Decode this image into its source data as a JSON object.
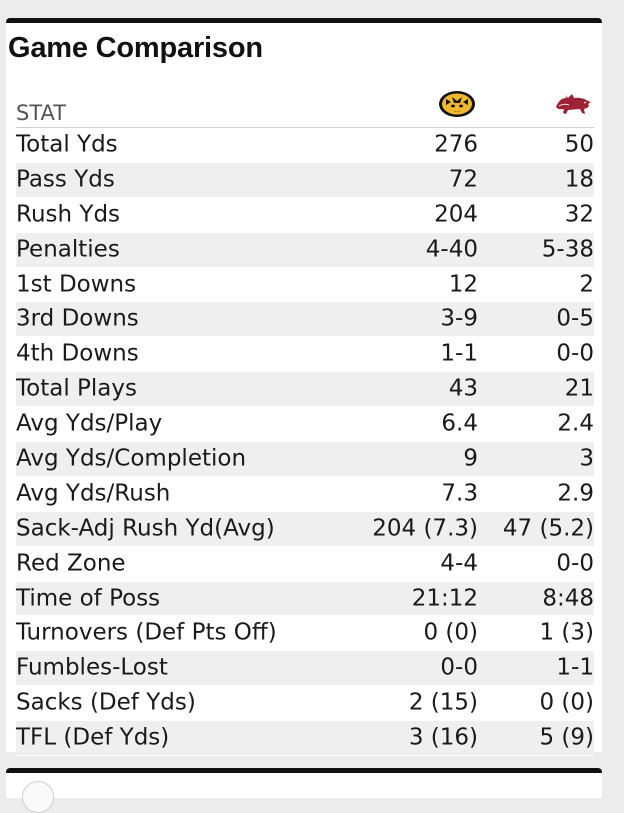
{
  "panel": {
    "title": "Game Comparison",
    "stat_header": "STAT",
    "home_logo_icon": "tiger-logo-icon",
    "away_logo_icon": "razorback-logo-icon",
    "home_color": "#F1B82D",
    "away_color": "#9D2235"
  },
  "rows": [
    {
      "stat": "Total Yds",
      "home": "276",
      "away": "50"
    },
    {
      "stat": "Pass Yds",
      "home": "72",
      "away": "18"
    },
    {
      "stat": "Rush Yds",
      "home": "204",
      "away": "32"
    },
    {
      "stat": "Penalties",
      "home": "4-40",
      "away": "5-38"
    },
    {
      "stat": "1st Downs",
      "home": "12",
      "away": "2"
    },
    {
      "stat": "3rd Downs",
      "home": "3-9",
      "away": "0-5"
    },
    {
      "stat": "4th Downs",
      "home": "1-1",
      "away": "0-0"
    },
    {
      "stat": "Total Plays",
      "home": "43",
      "away": "21"
    },
    {
      "stat": "Avg Yds/Play",
      "home": "6.4",
      "away": "2.4"
    },
    {
      "stat": "Avg Yds/Completion",
      "home": "9",
      "away": "3"
    },
    {
      "stat": "Avg Yds/Rush",
      "home": "7.3",
      "away": "2.9"
    },
    {
      "stat": "Sack-Adj Rush Yd(Avg)",
      "home": "204 (7.3)",
      "away": "47 (5.2)"
    },
    {
      "stat": "Red Zone",
      "home": "4-4",
      "away": "0-0"
    },
    {
      "stat": "Time of Poss",
      "home": "21:12",
      "away": "8:48"
    },
    {
      "stat": "Turnovers (Def Pts Off)",
      "home": "0 (0)",
      "away": "1 (3)"
    },
    {
      "stat": "Fumbles-Lost",
      "home": "0-0",
      "away": "1-1"
    },
    {
      "stat": "Sacks (Def Yds)",
      "home": "2 (15)",
      "away": "0 (0)"
    },
    {
      "stat": "TFL (Def Yds)",
      "home": "3 (16)",
      "away": "5 (9)"
    }
  ]
}
